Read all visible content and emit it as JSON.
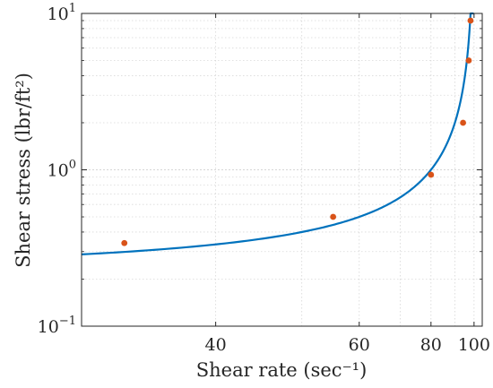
{
  "chart_data": {
    "type": "scatter",
    "xlabel": "Shear rate (sec⁻¹)",
    "ylabel": "Shear stress (lbr/ft²)",
    "xscale": "reciprocal",
    "yscale": "log",
    "xlim": [
      30.5,
      105
    ],
    "ylim": [
      0.1,
      10
    ],
    "x_ticks": [
      {
        "value": 40,
        "label": "40"
      },
      {
        "value": 60,
        "label": "60"
      },
      {
        "value": 80,
        "label": "80"
      },
      {
        "value": 100,
        "label": "100"
      }
    ],
    "y_ticks": [
      {
        "value": 0.1,
        "base": "10",
        "exp": "−1"
      },
      {
        "value": 1,
        "base": "10",
        "exp": "0"
      },
      {
        "value": 10,
        "base": "10",
        "exp": "1"
      }
    ],
    "grid": true,
    "series": [
      {
        "kind": "points",
        "color": "#D95319",
        "points": [
          {
            "x": 33,
            "y": 0.34
          },
          {
            "x": 55,
            "y": 0.5
          },
          {
            "x": 80,
            "y": 0.93
          },
          {
            "x": 94,
            "y": 2.0
          },
          {
            "x": 97,
            "y": 5.0
          },
          {
            "x": 98,
            "y": 9.0
          }
        ]
      },
      {
        "kind": "fit-line",
        "color": "#0072BD",
        "model": {
          "form": "y = a / (1 - x/x0)",
          "a": 0.2,
          "x0": 100
        },
        "x_range": [
          30.5,
          99.8
        ]
      }
    ]
  }
}
